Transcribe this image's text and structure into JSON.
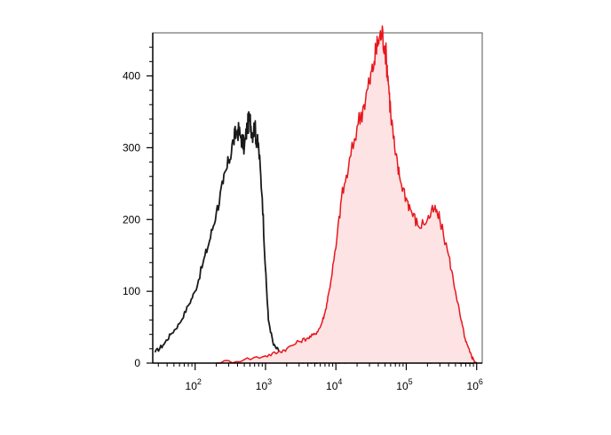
{
  "chart_data": {
    "type": "area",
    "title": "",
    "xlabel": "",
    "ylabel": "",
    "x_scale": "log",
    "xlim": [
      25,
      1200000
    ],
    "ylim": [
      0,
      460
    ],
    "grid": false,
    "legend": "none",
    "y_ticks": [
      {
        "value": 0,
        "label": "0"
      },
      {
        "value": 100,
        "label": "100"
      },
      {
        "value": 200,
        "label": "200"
      },
      {
        "value": 300,
        "label": "300"
      },
      {
        "value": 400,
        "label": "400"
      }
    ],
    "x_ticks": [
      {
        "value": 100,
        "base": "10",
        "exp": "2"
      },
      {
        "value": 1000,
        "base": "10",
        "exp": "3"
      },
      {
        "value": 10000,
        "base": "10",
        "exp": "4"
      },
      {
        "value": 100000,
        "base": "10",
        "exp": "5"
      },
      {
        "value": 1000000,
        "base": "10",
        "exp": "6"
      }
    ],
    "series": [
      {
        "color": "#1a1a1a",
        "fill": "none",
        "x": [
          27,
          35,
          45,
          60,
          80,
          100,
          130,
          160,
          200,
          250,
          300,
          350,
          400,
          450,
          500,
          550,
          600,
          650,
          700,
          750,
          800,
          900,
          1000,
          1100,
          1300,
          1600,
          2000,
          2500,
          3000,
          4000,
          6000,
          10000,
          20000,
          50000,
          100000,
          300000,
          900000
        ],
        "y": [
          15,
          25,
          40,
          55,
          80,
          100,
          140,
          170,
          210,
          250,
          280,
          310,
          325,
          315,
          300,
          330,
          340,
          320,
          330,
          310,
          300,
          230,
          130,
          60,
          25,
          15,
          8,
          5,
          3,
          2,
          2,
          2,
          2,
          3,
          2,
          2,
          0
        ]
      },
      {
        "color": "#e8171d",
        "fill": "#fde3e3",
        "x": [
          200,
          500,
          1000,
          1500,
          2000,
          3000,
          4000,
          5000,
          6000,
          7000,
          8000,
          10000,
          12000,
          15000,
          20000,
          25000,
          30000,
          35000,
          40000,
          45000,
          50000,
          55000,
          60000,
          70000,
          80000,
          100000,
          120000,
          150000,
          200000,
          250000,
          300000,
          400000,
          500000,
          600000,
          700000,
          800000,
          900000,
          1000000
        ],
        "y": [
          0,
          5,
          10,
          15,
          20,
          30,
          35,
          40,
          50,
          70,
          100,
          160,
          230,
          270,
          330,
          360,
          390,
          420,
          450,
          460,
          440,
          400,
          350,
          290,
          260,
          230,
          210,
          190,
          200,
          215,
          200,
          150,
          100,
          60,
          30,
          15,
          5,
          0
        ]
      }
    ]
  }
}
